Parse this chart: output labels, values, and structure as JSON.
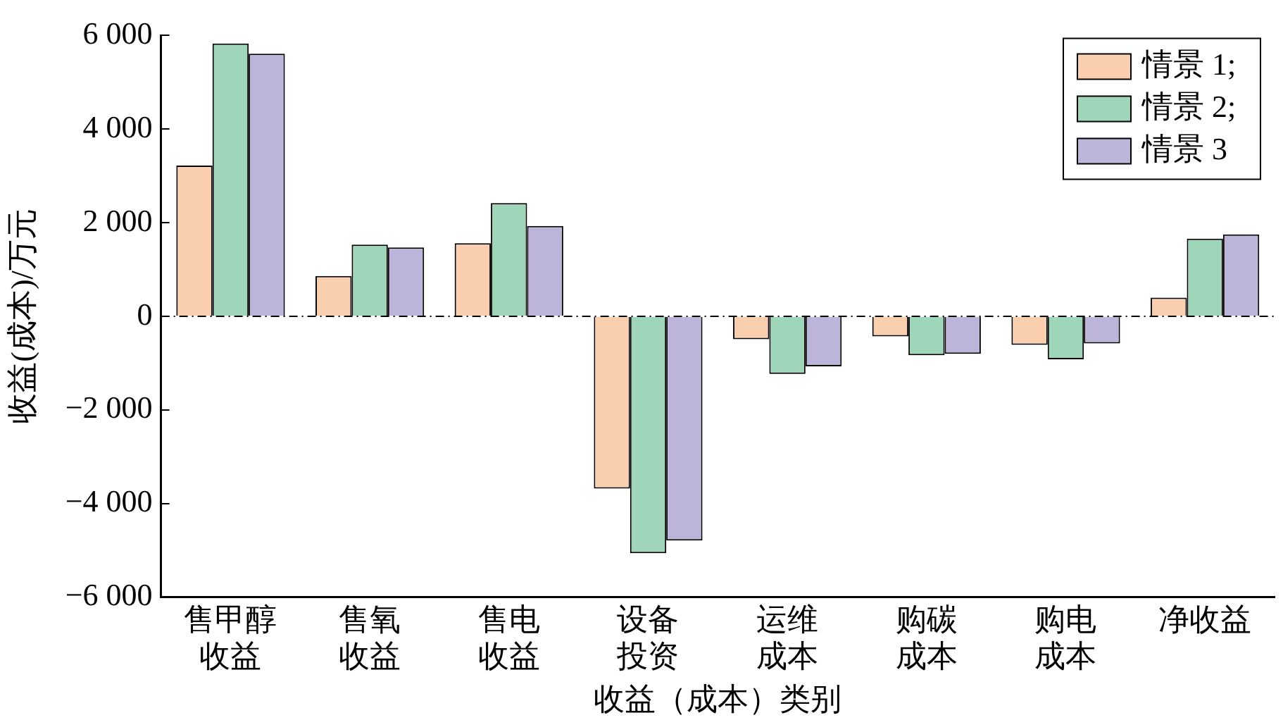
{
  "chart_data": {
    "type": "bar",
    "xlabel": "收益（成本）类别",
    "ylabel": "收益(成本)/万元",
    "categories": [
      "售甲醇收益",
      "售氧收益",
      "售电收益",
      "设备投资",
      "运维成本",
      "购碳成本",
      "购电成本",
      "净收益"
    ],
    "series": [
      {
        "name": "情景 1;",
        "color": "#f9cfb0",
        "values": [
          3220,
          860,
          1560,
          -3680,
          -490,
          -430,
          -610,
          400
        ]
      },
      {
        "name": "情景 2;",
        "color": "#9fd5b9",
        "values": [
          5830,
          1530,
          2420,
          -5060,
          -1230,
          -830,
          -920,
          1660
        ]
      },
      {
        "name": "情景 3",
        "color": "#bdb5d9",
        "values": [
          5610,
          1470,
          1930,
          -4790,
          -1070,
          -800,
          -580,
          1750
        ]
      }
    ],
    "ylim": [
      -6000,
      6000
    ],
    "yticks": [
      {
        "value": -6000,
        "label": "−6 000"
      },
      {
        "value": -4000,
        "label": "−4 000"
      },
      {
        "value": -2000,
        "label": "−2 000"
      },
      0,
      {
        "value": 2000,
        "label": "2 000"
      },
      {
        "value": 4000,
        "label": "4 000"
      },
      {
        "value": 6000,
        "label": "6 000"
      }
    ],
    "ref_lines": [
      {
        "axis": "y",
        "value": 0,
        "line_style": "dashed"
      }
    ],
    "legend": "top right",
    "grid": false
  }
}
